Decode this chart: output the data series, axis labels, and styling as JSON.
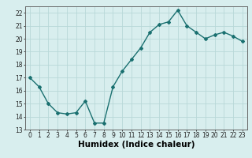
{
  "x": [
    0,
    1,
    2,
    3,
    4,
    5,
    6,
    7,
    8,
    9,
    10,
    11,
    12,
    13,
    14,
    15,
    16,
    17,
    18,
    19,
    20,
    21,
    22,
    23
  ],
  "y": [
    17.0,
    16.3,
    15.0,
    14.3,
    14.2,
    14.3,
    15.2,
    13.5,
    13.5,
    16.3,
    17.5,
    18.4,
    19.3,
    20.5,
    21.1,
    21.3,
    22.2,
    21.0,
    20.5,
    20.0,
    20.3,
    20.5,
    20.2,
    19.8
  ],
  "line_color": "#1a7070",
  "marker": "D",
  "marker_size": 2.0,
  "bg_color": "#d8eeee",
  "grid_color": "#b8d8d8",
  "xlabel": "Humidex (Indice chaleur)",
  "ylim": [
    13,
    22.5
  ],
  "xlim": [
    -0.5,
    23.5
  ],
  "yticks": [
    13,
    14,
    15,
    16,
    17,
    18,
    19,
    20,
    21,
    22
  ],
  "xticks": [
    0,
    1,
    2,
    3,
    4,
    5,
    6,
    7,
    8,
    9,
    10,
    11,
    12,
    13,
    14,
    15,
    16,
    17,
    18,
    19,
    20,
    21,
    22,
    23
  ],
  "tick_fontsize": 5.5,
  "xlabel_fontsize": 7.5,
  "line_width": 1.0
}
